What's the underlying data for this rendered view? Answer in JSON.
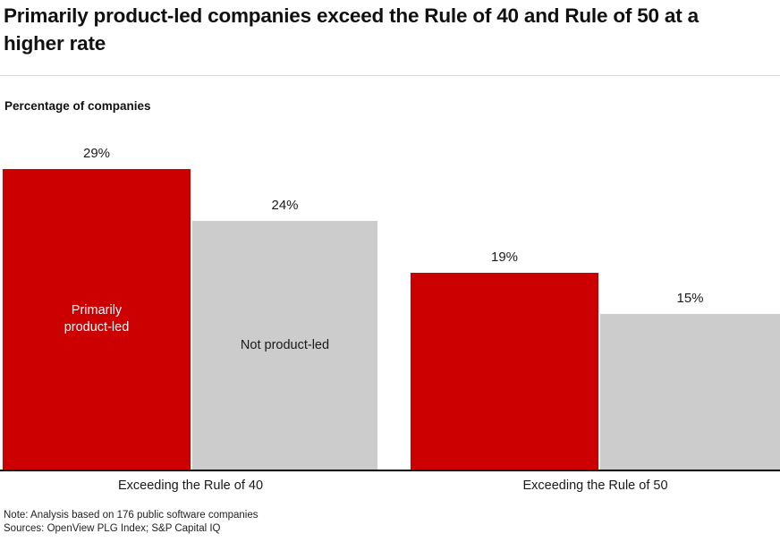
{
  "title": "Primarily product-led companies exceed the Rule of 40 and Rule of 50 at a higher rate",
  "chart_data": {
    "type": "bar",
    "categories": [
      "Exceeding the Rule of 40",
      "Exceeding the Rule of 50"
    ],
    "series": [
      {
        "name": "Primarily product-led",
        "values": [
          29,
          19
        ],
        "color": "#cc0000",
        "label_color": "#ffffff"
      },
      {
        "name": "Not product-led",
        "values": [
          24,
          15
        ],
        "color": "#cccccc",
        "label_color": "#1a1a1a"
      }
    ],
    "title": "Primarily product-led companies exceed the Rule of 40 and Rule of 50 at a higher rate",
    "xlabel": "",
    "ylabel": "Percentage of companies",
    "value_suffix": "%",
    "ylim": [
      0,
      31
    ],
    "grid": false,
    "legend": "series-names-shown-inside-first-group-bars",
    "data_labels": true
  },
  "footer": {
    "note": "Note: Analysis based on 176 public software companies",
    "sources": "Sources: OpenView PLG Index; S&P Capital IQ"
  }
}
